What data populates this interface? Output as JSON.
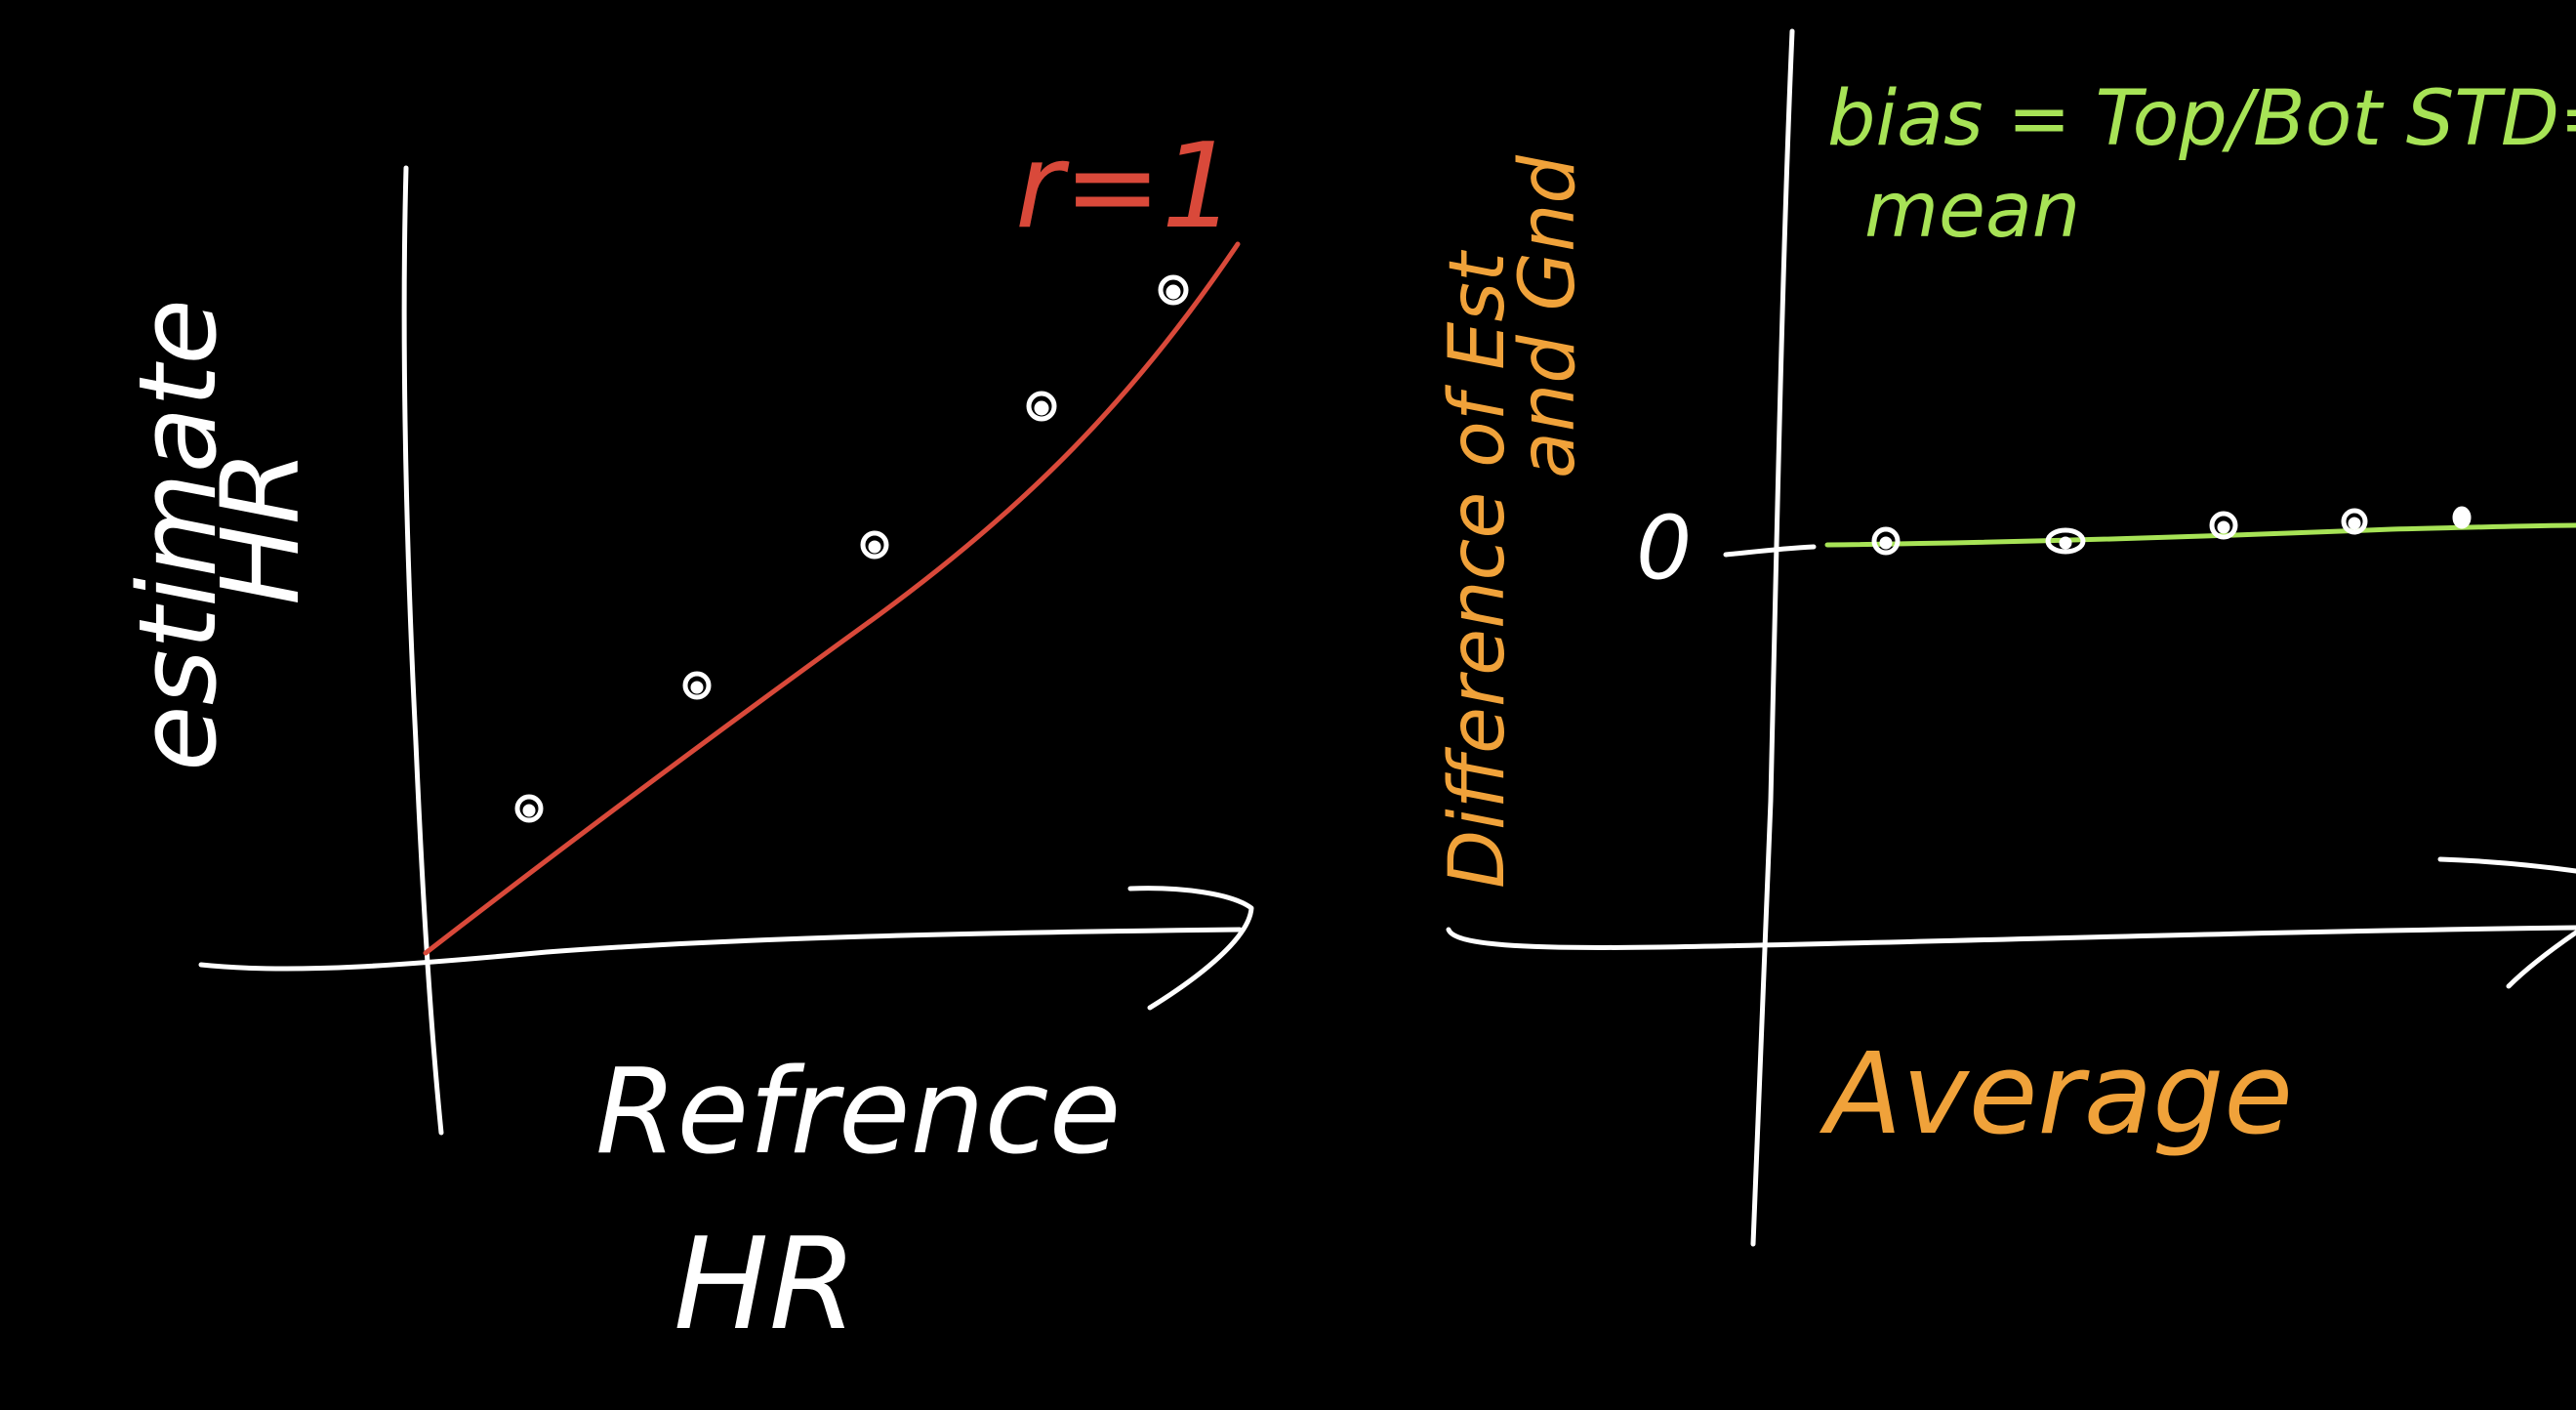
{
  "colors": {
    "background": "#000000",
    "ink_white": "#ffffff",
    "ink_red": "#d9493a",
    "ink_orange": "#f0a23a",
    "ink_green": "#a7e356"
  },
  "left_plot": {
    "y_label_line1": "estimate",
    "y_label_line2": "HR",
    "x_label_line1": "Refrence",
    "x_label_line2": "HR",
    "fit_label": "r=1"
  },
  "right_plot": {
    "y_label_line1": "Difference of Est",
    "y_label_line2": "and Gnd",
    "x_label": "Average",
    "zero_label": "0",
    "note_line1": "bias = Top/Bot STD=",
    "note_line2": "mean"
  }
}
